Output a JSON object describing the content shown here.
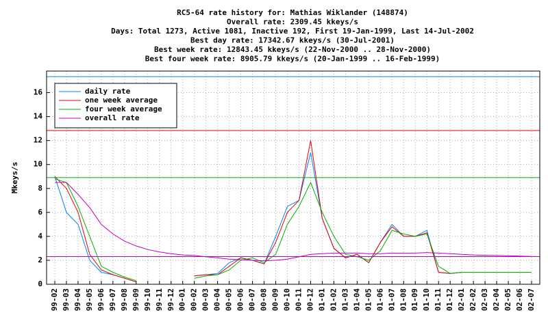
{
  "chart_data": {
    "type": "line",
    "title": [
      "RC5-64 rate history for: Mathias Wiklander (148874)",
      "Overall rate: 2309.45 kkeys/s",
      "Days: Total 1273,  Active 1081, Inactive 192, First 19-Jan-1999, Last 14-Jul-2002",
      "Best day rate: 17342.67 kkeys/s (30-Jul-2001)",
      "Best week rate: 12843.45 kkeys/s (22-Nov-2000 .. 28-Nov-2000)",
      "Best four week rate: 8905.79 kkeys/s (20-Jan-1999 .. 16-Feb-1999)"
    ],
    "y_label": "Mkeys/s",
    "categories": [
      "99-02",
      "99-03",
      "99-04",
      "99-05",
      "99-06",
      "99-07",
      "99-08",
      "99-09",
      "99-10",
      "99-11",
      "99-12",
      "00-01",
      "00-02",
      "00-03",
      "00-04",
      "00-05",
      "00-06",
      "00-07",
      "00-08",
      "00-09",
      "00-10",
      "00-11",
      "00-12",
      "01-01",
      "01-02",
      "01-03",
      "01-04",
      "01-05",
      "01-06",
      "01-07",
      "01-08",
      "01-09",
      "01-10",
      "01-11",
      "01-12",
      "02-01",
      "02-02",
      "02-03",
      "02-04",
      "02-05",
      "02-06",
      "02-07"
    ],
    "series": [
      {
        "name": "daily rate",
        "color": "#0080ff",
        "best": 17.34,
        "values": [
          9,
          6,
          5,
          2,
          1,
          0.8,
          0.5,
          0.2,
          null,
          null,
          null,
          null,
          0.7,
          0.8,
          0.9,
          1.8,
          2.2,
          2.0,
          1.7,
          4,
          6.5,
          7,
          11,
          5.5,
          3,
          2.2,
          2.5,
          1.8,
          3.5,
          5,
          4,
          4,
          4.5,
          1,
          0.9,
          1,
          1,
          1,
          1,
          1,
          1,
          1
        ]
      },
      {
        "name": "one week average",
        "color": "#e00000",
        "best": 12.84,
        "values": [
          9,
          8,
          6,
          2.5,
          1.2,
          0.8,
          0.5,
          0.2,
          null,
          null,
          null,
          null,
          0.7,
          0.8,
          0.8,
          1.5,
          2.2,
          2.0,
          1.7,
          3.5,
          6,
          7,
          12,
          5.5,
          3,
          2.2,
          2.5,
          1.8,
          3.5,
          4.8,
          4,
          4,
          4.3,
          1,
          0.9,
          1,
          1,
          1,
          1,
          1,
          1,
          1
        ]
      },
      {
        "name": "four week average",
        "color": "#00b000",
        "best": 8.91,
        "values": [
          8.8,
          8.5,
          6.5,
          4,
          1.5,
          1,
          0.6,
          0.3,
          null,
          null,
          null,
          null,
          0.5,
          0.7,
          0.8,
          1.2,
          2,
          2.2,
          1.8,
          2.5,
          5,
          6.5,
          8.5,
          6,
          4,
          2.5,
          2.3,
          2,
          2.8,
          4.5,
          4.2,
          4,
          4.2,
          1.5,
          0.9,
          1,
          1,
          1,
          1,
          1,
          1,
          1
        ]
      },
      {
        "name": "overall rate",
        "color": "#c000c0",
        "best": 2.31,
        "values": [
          8.5,
          8.5,
          7.5,
          6.4,
          5.0,
          4.2,
          3.6,
          3.2,
          2.9,
          2.7,
          2.55,
          2.45,
          2.4,
          2.3,
          2.2,
          2.1,
          2.05,
          2.0,
          1.95,
          2.0,
          2.1,
          2.3,
          2.5,
          2.55,
          2.6,
          2.6,
          2.6,
          2.55,
          2.55,
          2.6,
          2.6,
          2.6,
          2.65,
          2.6,
          2.55,
          2.5,
          2.45,
          2.42,
          2.4,
          2.38,
          2.35,
          2.32
        ]
      }
    ],
    "ylim": [
      0,
      17.8
    ],
    "yticks": [
      0,
      2,
      4,
      6,
      8,
      10,
      12,
      14,
      16
    ],
    "grid": true
  }
}
